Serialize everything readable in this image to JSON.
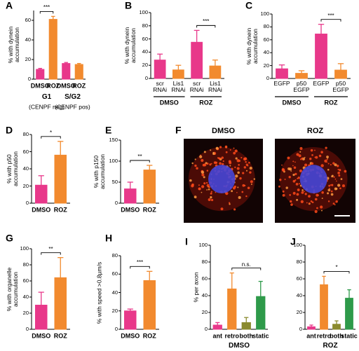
{
  "chart_data": [
    {
      "type": "bar",
      "label": "A",
      "ylabel": "% with dynein accumulation",
      "categories": [
        "DMSO",
        "ROZ",
        "DMSO",
        "ROZ"
      ],
      "values": [
        10,
        61,
        16,
        15
      ],
      "errors": [
        1,
        3,
        1,
        1
      ],
      "colors": [
        "#e8388a",
        "#f28a2e",
        "#e8388a",
        "#f28a2e"
      ],
      "ylim": [
        0,
        70
      ],
      "yticks": [
        0,
        20,
        40,
        60
      ],
      "annotation": "***",
      "groups": [
        "G1",
        "S/G2"
      ],
      "group_notes": [
        "(CENPF neg)",
        "(CENPF pos)"
      ]
    },
    {
      "type": "bar",
      "label": "B",
      "ylabel": "% with dynein accumulation",
      "categories": [
        "scr RNAi",
        "Lis1 RNAi",
        "scr RNAi",
        "Lis1 RNAi"
      ],
      "values": [
        28,
        13,
        55,
        19
      ],
      "errors": [
        9,
        7,
        18,
        9
      ],
      "colors": [
        "#e8388a",
        "#f28a2e",
        "#e8388a",
        "#f28a2e"
      ],
      "ylim": [
        0,
        100
      ],
      "yticks": [
        0,
        20,
        40,
        60,
        80,
        100
      ],
      "annotation": "***",
      "groups": [
        "DMSO",
        "ROZ"
      ]
    },
    {
      "type": "bar",
      "label": "C",
      "ylabel": "% with dynein accumulation",
      "categories": [
        "EGFP",
        "p50 EGFP",
        "EGFP",
        "p50 EGFP"
      ],
      "values": [
        15,
        8,
        69,
        13
      ],
      "errors": [
        6,
        4,
        15,
        10
      ],
      "colors": [
        "#e8388a",
        "#f28a2e",
        "#e8388a",
        "#f28a2e"
      ],
      "ylim": [
        0,
        100
      ],
      "yticks": [
        0,
        20,
        40,
        60,
        80,
        100
      ],
      "annotation": "***",
      "groups": [
        "DMSO",
        "ROZ"
      ]
    },
    {
      "type": "bar",
      "label": "D",
      "ylabel": "% with p50 accumulation",
      "categories": [
        "DMSO",
        "ROZ"
      ],
      "values": [
        21,
        56
      ],
      "errors": [
        11,
        16
      ],
      "colors": [
        "#e8388a",
        "#f28a2e"
      ],
      "ylim": [
        0,
        80
      ],
      "yticks": [
        0,
        20,
        40,
        60,
        80
      ],
      "annotation": "*"
    },
    {
      "type": "bar",
      "label": "E",
      "ylabel": "% with p150 accumulation",
      "categories": [
        "DMSO",
        "ROZ"
      ],
      "values": [
        34,
        79
      ],
      "errors": [
        16,
        11
      ],
      "colors": [
        "#e8388a",
        "#f28a2e"
      ],
      "ylim": [
        0,
        150
      ],
      "yticks": [
        0,
        50,
        100,
        150
      ],
      "annotation": "**"
    },
    {
      "type": "image",
      "label": "F",
      "titles": [
        "DMSO",
        "ROZ"
      ]
    },
    {
      "type": "bar",
      "label": "G",
      "ylabel": "% with organelle accumulation",
      "categories": [
        "DMSO",
        "ROZ"
      ],
      "values": [
        30,
        64
      ],
      "errors": [
        16,
        25
      ],
      "colors": [
        "#e8388a",
        "#f28a2e"
      ],
      "ylim": [
        0,
        100
      ],
      "yticks": [
        0,
        20,
        40,
        60,
        80,
        100
      ],
      "annotation": "**"
    },
    {
      "type": "bar",
      "label": "H",
      "ylabel": "% with speed >0.8µm/s",
      "categories": [
        "DMSO",
        "ROZ"
      ],
      "values": [
        20,
        53
      ],
      "errors": [
        2,
        10
      ],
      "colors": [
        "#e8388a",
        "#f28a2e"
      ],
      "ylim": [
        0,
        80
      ],
      "yticks": [
        0,
        20,
        40,
        60,
        80
      ],
      "annotation": "***"
    },
    {
      "type": "bar",
      "label": "I",
      "ylabel": "% per axon",
      "xlabel": "DMSO",
      "categories": [
        "ant",
        "retro",
        "both",
        "static"
      ],
      "values": [
        5,
        48,
        8,
        39
      ],
      "errors": [
        3,
        19,
        6,
        18
      ],
      "colors": [
        "#e8388a",
        "#f28a2e",
        "#8a8a2e",
        "#2e9a4a"
      ],
      "ylim": [
        0,
        100
      ],
      "yticks": [
        0,
        20,
        40,
        60,
        80,
        100
      ],
      "annotation": "n.s."
    },
    {
      "type": "bar",
      "label": "J",
      "xlabel": "ROZ",
      "categories": [
        "ant",
        "retro",
        "both",
        "static"
      ],
      "values": [
        3,
        53,
        6,
        37
      ],
      "errors": [
        2,
        10,
        4,
        10
      ],
      "colors": [
        "#e8388a",
        "#f28a2e",
        "#8a8a2e",
        "#2e9a4a"
      ],
      "ylim": [
        0,
        100
      ],
      "yticks": [
        0,
        20,
        40,
        60,
        80,
        100
      ],
      "annotation": "*"
    }
  ]
}
